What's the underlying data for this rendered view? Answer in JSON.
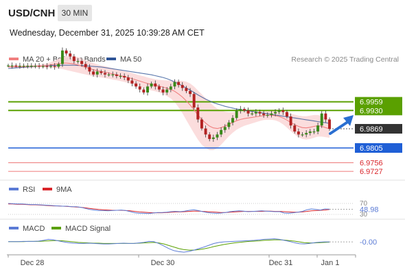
{
  "header": {
    "symbol": "USD/CNH",
    "timeframe": "30 MIN",
    "timestamp": "Wednesday, December 31, 2025 10:39:28 AM CET",
    "credit": "Research © 2025 Trading Central"
  },
  "colors": {
    "ma20": "#f07f7f",
    "ma50": "#2f5597",
    "bollinger_fill": "#fbd9d9",
    "resistance": "#5aa000",
    "support": "#1f5fd6",
    "support_light": "#f08a8a",
    "rsi": "#5b7bd5",
    "rsi_ma": "#d9252a",
    "macd": "#5b7bd5",
    "macd_signal": "#5aa000",
    "candle_up": "#3a8a1a",
    "candle_down": "#b22222",
    "arrow": "#2a6fd1"
  },
  "chart_data": [
    {
      "type": "candlestick",
      "legend": [
        "MA 20 + Bollinger Bands",
        "MA 50"
      ],
      "x_ticks": [
        "Dec 28",
        "Dec 30",
        "Dec 31",
        "Jan 1"
      ],
      "ylim": [
        6.97,
        7.007
      ],
      "last_price": 6.9869,
      "levels": [
        {
          "value": 6.9959,
          "label": "6.9959",
          "kind": "resistance"
        },
        {
          "value": 6.993,
          "label": "6.9930",
          "kind": "resistance"
        },
        {
          "value": 6.9869,
          "label": "6.9869",
          "kind": "last"
        },
        {
          "value": 6.9805,
          "label": "6.9805",
          "kind": "support"
        },
        {
          "value": 6.9756,
          "label": "6.9756",
          "kind": "support_light"
        },
        {
          "value": 6.9727,
          "label": "6.9727",
          "kind": "support_light"
        }
      ],
      "close_series": [
        7.008,
        7.008,
        7.0079,
        7.0079,
        7.0079,
        7.0079,
        7.0079,
        7.0079,
        7.0078,
        7.0078,
        7.0077,
        7.0078,
        7.0076,
        7.0085,
        7.013,
        7.012,
        7.011,
        7.0095,
        7.0095,
        7.0085,
        7.0075,
        7.006,
        7.005,
        7.006,
        7.0055,
        7.005,
        7.005,
        7.005,
        7.0045,
        7.0045,
        7.004,
        7.003,
        7.002,
        7.001,
        7.0,
        6.999,
        7.001,
        7.002,
        7.001,
        7.0,
        6.999,
        7.0,
        7.001,
        7.0025,
        7.0015,
        7.0005,
        6.9995,
        6.9985,
        6.994,
        6.99,
        6.987,
        6.985,
        6.9835,
        6.984,
        6.985,
        6.9865,
        6.9875,
        6.989,
        6.9905,
        6.993,
        6.9935,
        6.993,
        6.992,
        6.992,
        6.9925,
        6.992,
        6.9915,
        6.9915,
        6.992,
        6.9925,
        6.993,
        6.9925,
        6.991,
        6.988,
        6.986,
        6.985,
        6.985,
        6.9855,
        6.986,
        6.986,
        6.988,
        6.992,
        6.99,
        6.9869
      ],
      "ma20_series": [
        7.0076,
        7.0076,
        7.0076,
        7.0076,
        7.0076,
        7.0077,
        7.0077,
        7.0078,
        7.0078,
        7.0079,
        7.008,
        7.0082,
        7.0084,
        7.0086,
        7.0088,
        7.0088,
        7.0087,
        7.0085,
        7.0082,
        7.0078,
        7.0074,
        7.007,
        7.0066,
        7.0063,
        7.006,
        7.0058,
        7.0055,
        7.0052,
        7.0049,
        7.0046,
        7.0043,
        7.004,
        7.0036,
        7.0032,
        7.0028,
        7.0024,
        7.002,
        7.0017,
        7.0014,
        7.0011,
        7.0008,
        7.0004,
        7.0,
        6.9994,
        6.9985,
        6.9975,
        6.9962,
        6.9948,
        6.9932,
        6.9915,
        6.99,
        6.9888,
        6.9878,
        6.9872,
        6.987,
        6.9873,
        6.9878,
        6.9884,
        6.989,
        6.9896,
        6.99,
        6.9903,
        6.9905,
        6.9907,
        6.9909,
        6.9911,
        6.9913,
        6.9914,
        6.9914,
        6.9913,
        6.991,
        6.9905,
        6.9898,
        6.989,
        6.9883,
        6.9877,
        6.9873,
        6.9872,
        6.9874,
        6.9877,
        6.9879,
        6.9877,
        6.9873,
        6.9869
      ],
      "ma50_series": [
        7.007,
        7.0071,
        7.0072,
        7.0073,
        7.0074,
        7.0075,
        7.0076,
        7.0077,
        7.0078,
        7.0078,
        7.0079,
        7.008,
        7.008,
        7.008,
        7.0081,
        7.0081,
        7.0081,
        7.0081,
        7.008,
        7.008,
        7.0079,
        7.0078,
        7.0077,
        7.0076,
        7.0075,
        7.0073,
        7.0071,
        7.0069,
        7.0067,
        7.0065,
        7.0063,
        7.0061,
        7.0059,
        7.0057,
        7.0055,
        7.0053,
        7.0051,
        7.0049,
        7.0046,
        7.0043,
        7.004,
        7.0036,
        7.0031,
        7.0025,
        7.0019,
        7.0012,
        7.0005,
        6.9998,
        6.999,
        6.9982,
        6.9975,
        6.9968,
        6.9962,
        6.9956,
        6.9952,
        6.9948,
        6.9944,
        6.9941,
        6.9938,
        6.9935,
        6.9933,
        6.9931,
        6.9929,
        6.9927,
        6.9925,
        6.9923,
        6.9921,
        6.9919,
        6.9917,
        6.9915,
        6.9913,
        6.9911,
        6.9909,
        6.9907,
        6.9905,
        6.9903,
        6.9901,
        6.9899,
        6.9897,
        6.9895,
        6.9893,
        6.9891,
        6.9889,
        6.9887
      ],
      "bb_width_series": [
        0.0004,
        0.0004,
        0.0004,
        0.0004,
        0.0004,
        0.0004,
        0.0004,
        0.0005,
        0.0005,
        0.0006,
        0.0007,
        0.0009,
        0.0012,
        0.0016,
        0.002,
        0.0023,
        0.0025,
        0.0026,
        0.0026,
        0.0025,
        0.0024,
        0.0023,
        0.0022,
        0.0021,
        0.002,
        0.002,
        0.0019,
        0.0019,
        0.0018,
        0.0018,
        0.0018,
        0.0018,
        0.0019,
        0.0019,
        0.0019,
        0.002,
        0.002,
        0.002,
        0.002,
        0.0021,
        0.0023,
        0.0026,
        0.003,
        0.0036,
        0.0044,
        0.0054,
        0.0064,
        0.0072,
        0.0078,
        0.0082,
        0.0084,
        0.0083,
        0.008,
        0.0074,
        0.0066,
        0.0057,
        0.0048,
        0.004,
        0.0034,
        0.003,
        0.0027,
        0.0024,
        0.0022,
        0.002,
        0.0018,
        0.0016,
        0.0015,
        0.0015,
        0.0015,
        0.0016,
        0.0018,
        0.0021,
        0.0025,
        0.0029,
        0.0033,
        0.0036,
        0.0038,
        0.0039,
        0.0039,
        0.0038,
        0.0036,
        0.0034,
        0.0032,
        0.003
      ]
    },
    {
      "type": "line",
      "title": "RSI",
      "legend": [
        "RSI",
        "9MA"
      ],
      "levels": [
        70,
        30
      ],
      "level_labels": [
        "70",
        "30"
      ],
      "last_value": 48.98,
      "last_label": "48.98",
      "ylim": [
        0,
        100
      ],
      "rsi_series": [
        70,
        69,
        68,
        68,
        67,
        66,
        66,
        65,
        64,
        63,
        62,
        61,
        60,
        60,
        58,
        58,
        56,
        52,
        48,
        46,
        44,
        44,
        43,
        44,
        45,
        46,
        44,
        40,
        36,
        34,
        34,
        33,
        35,
        37,
        37,
        38,
        40,
        41,
        40,
        42,
        45,
        47,
        44,
        40,
        37,
        35,
        34,
        35,
        37,
        40,
        42,
        43,
        42,
        40,
        41,
        42,
        43,
        42,
        41,
        40,
        40,
        35,
        34,
        36,
        38,
        41,
        47,
        50,
        48,
        46,
        50,
        49
      ],
      "ma_series": [
        68,
        68,
        67,
        67,
        66,
        65,
        65,
        64,
        63,
        62,
        61,
        61,
        60,
        59,
        58,
        57,
        56,
        54,
        52,
        50,
        48,
        47,
        46,
        45,
        45,
        45,
        44,
        43,
        41,
        39,
        38,
        37,
        36,
        36,
        36,
        37,
        38,
        39,
        39,
        40,
        41,
        42,
        42,
        41,
        40,
        39,
        38,
        37,
        37,
        38,
        39,
        40,
        41,
        41,
        41,
        41,
        41,
        42,
        42,
        41,
        41,
        40,
        39,
        38,
        38,
        39,
        41,
        43,
        44,
        45,
        46,
        48
      ]
    },
    {
      "type": "line",
      "title": "MACD",
      "legend": [
        "MACD",
        "MACD Signal"
      ],
      "last_value": 0.0,
      "last_label": "-0.00",
      "ylim": [
        -0.0045,
        0.0035
      ],
      "macd_series": [
        0.0001,
        0.0001,
        0.0001,
        0.0002,
        0.0002,
        0.0002,
        0.0003,
        0.0006,
        0.001,
        0.0008,
        0.0004,
        0.0,
        -0.0003,
        -0.0005,
        -0.0006,
        -0.0006,
        -0.0005,
        -0.0006,
        -0.0007,
        -0.0008,
        -0.0008,
        -0.0007,
        -0.0006,
        -0.0005,
        -0.0006,
        -0.0006,
        -0.0004,
        -0.0002,
        0.0002,
        0.0001,
        -0.0006,
        -0.0016,
        -0.0026,
        -0.0034,
        -0.0038,
        -0.004,
        -0.0037,
        -0.0032,
        -0.0026,
        -0.002,
        -0.0013,
        -0.0006,
        -0.0002,
        0.0,
        0.0001,
        0.0002,
        0.0003,
        0.0004,
        0.0005,
        0.0006,
        0.0008,
        0.001,
        0.0011,
        0.0012,
        0.001,
        0.0006,
        0.0002,
        -0.0003,
        -0.0007,
        -0.0008,
        -0.0006,
        -0.0003,
        -0.0001,
        0.0,
        0.0
      ],
      "signal_series": [
        0.0001,
        0.0001,
        0.0001,
        0.0001,
        0.0002,
        0.0002,
        0.0002,
        0.0003,
        0.0004,
        0.0005,
        0.0005,
        0.0004,
        0.0002,
        0.0,
        -0.0002,
        -0.0003,
        -0.0004,
        -0.0005,
        -0.0005,
        -0.0006,
        -0.0006,
        -0.0006,
        -0.0006,
        -0.0006,
        -0.0006,
        -0.0006,
        -0.0005,
        -0.0004,
        -0.0003,
        -0.0002,
        -0.0004,
        -0.0008,
        -0.0014,
        -0.002,
        -0.0026,
        -0.003,
        -0.0032,
        -0.0032,
        -0.003,
        -0.0027,
        -0.0023,
        -0.0018,
        -0.0014,
        -0.001,
        -0.0007,
        -0.0004,
        -0.0002,
        0.0,
        0.0002,
        0.0003,
        0.0004,
        0.0006,
        0.0007,
        0.0008,
        0.0008,
        0.0007,
        0.0005,
        0.0003,
        0.0,
        -0.0003,
        -0.0004,
        -0.0004,
        -0.0003,
        -0.0002,
        -0.0001
      ]
    }
  ]
}
